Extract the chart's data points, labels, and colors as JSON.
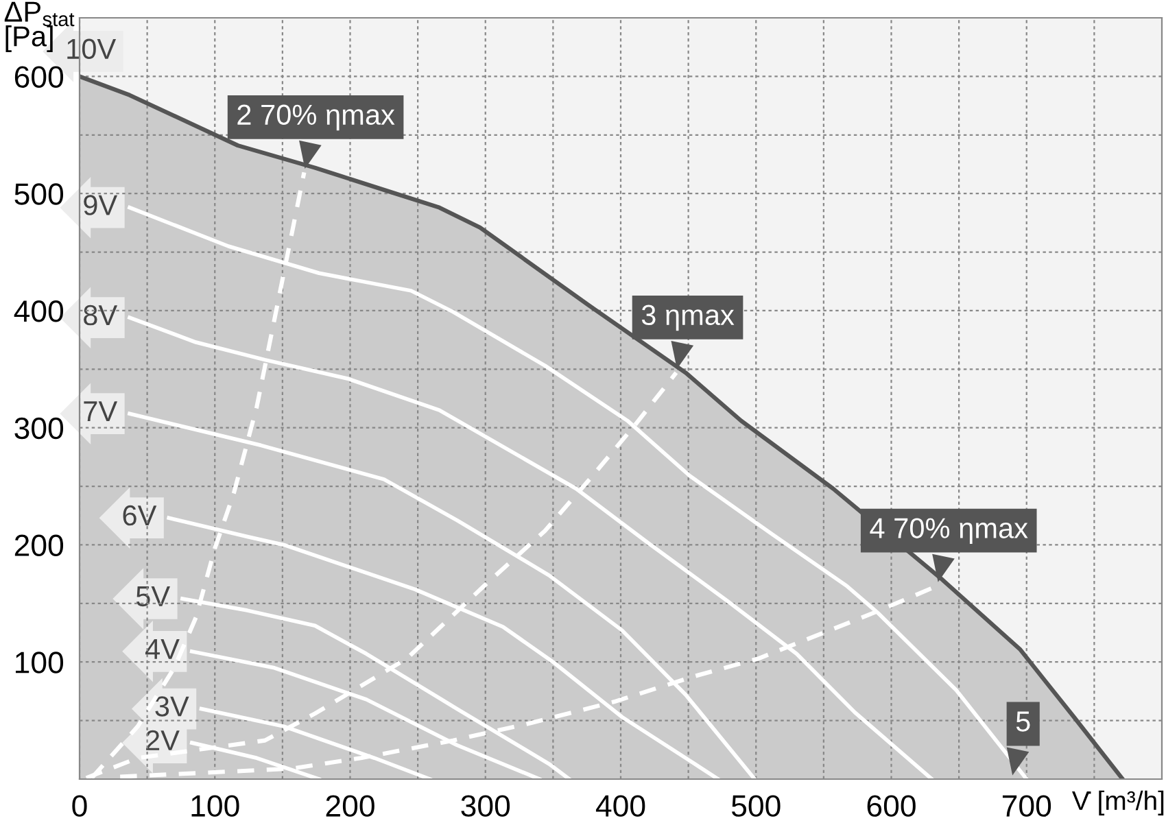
{
  "chart_data": {
    "type": "line",
    "xlabel": "V̇ [m³/h]",
    "ylabel": "ΔP$_{stat}$\n[Pa]",
    "xlim": [
      0,
      800
    ],
    "ylim": [
      0,
      650
    ],
    "xticks": [
      0,
      {
        "value": 50,
        "label": null
      },
      100,
      {
        "value": 150,
        "label": null
      },
      200,
      {
        "value": 250,
        "label": null
      },
      300,
      {
        "value": 350,
        "label": null
      },
      400,
      {
        "value": 450,
        "label": null
      },
      500,
      {
        "value": 550,
        "label": null
      },
      600,
      {
        "value": 650,
        "label": null
      },
      700,
      {
        "value": 750,
        "label": null
      }
    ],
    "yticks": [
      {
        "value": 50,
        "label": null
      },
      100,
      {
        "value": 150,
        "label": null
      },
      200,
      {
        "value": 250,
        "label": null
      },
      300,
      {
        "value": 350,
        "label": null
      },
      400,
      {
        "value": 450,
        "label": null
      },
      500,
      {
        "value": 550,
        "label": null
      },
      600
    ],
    "grid": true,
    "legend": false,
    "marker": "none",
    "series": [
      {
        "type": "area",
        "name": "10V",
        "color": "#555555",
        "x": [
          0,
          37,
          117,
          174,
          228,
          266,
          296,
          377,
          448,
          489,
          557,
          638,
          695,
          735,
          771
        ],
        "values": [
          600,
          584,
          541,
          522,
          502,
          488,
          471,
          404,
          347,
          306,
          248,
          170,
          111,
          53,
          0
        ]
      },
      {
        "name": "9V",
        "color": "#ffffff",
        "x": [
          37,
          110,
          177,
          245,
          276,
          344,
          405,
          451,
          512,
          567,
          590,
          648,
          700
        ],
        "values": [
          488,
          455,
          432,
          417,
          399,
          353,
          306,
          259,
          209,
          165,
          142,
          76,
          0
        ]
      },
      {
        "name": "8V",
        "color": "#ffffff",
        "x": [
          37,
          86,
          137,
          198,
          266,
          367,
          421,
          479,
          530,
          573,
          630
        ],
        "values": [
          394,
          373,
          358,
          342,
          315,
          248,
          201,
          152,
          107,
          57,
          0
        ]
      },
      {
        "name": "7V",
        "color": "#ffffff",
        "x": [
          37,
          134,
          225,
          279,
          347,
          401,
          448,
          499
        ],
        "values": [
          312,
          285,
          256,
          221,
          174,
          127,
          72,
          0
        ]
      },
      {
        "name": "6V",
        "color": "#ffffff",
        "x": [
          66,
          124,
          151,
          248,
          313,
          350,
          401,
          448,
          472
        ],
        "values": [
          223,
          207,
          200,
          162,
          130,
          100,
          53,
          18,
          0
        ]
      },
      {
        "name": "5V",
        "color": "#ffffff",
        "x": [
          76,
          124,
          174,
          212,
          279,
          347,
          362
        ],
        "values": [
          154,
          144,
          131,
          107,
          60,
          13,
          0
        ]
      },
      {
        "name": "4V",
        "color": "#ffffff",
        "x": [
          83,
          144,
          212,
          279,
          340
        ],
        "values": [
          109,
          95,
          68,
          29,
          0
        ]
      },
      {
        "name": "3V",
        "color": "#ffffff",
        "x": [
          90,
          151,
          218,
          259
        ],
        "values": [
          60,
          45,
          18,
          0
        ]
      },
      {
        "name": "2V",
        "color": "#ffffff",
        "x": [
          83,
          131,
          177
        ],
        "values": [
          31,
          18,
          0
        ]
      },
      {
        "color": "#ffffff",
        "line_style": "dashed",
        "x": [
          9,
          43,
          70,
          86,
          100,
          114,
          131,
          166
        ],
        "values": [
          1,
          45,
          95,
          138,
          197,
          244,
          318,
          518
        ]
      },
      {
        "color": "#ffffff",
        "line_style": "dashed",
        "x": [
          5,
          43,
          137,
          174,
          242,
          299,
          344,
          377,
          411,
          441
        ],
        "values": [
          1,
          18,
          33,
          56,
          103,
          165,
          212,
          256,
          303,
          347
        ]
      },
      {
        "color": "#ffffff",
        "line_style": "dashed",
        "x": [
          30,
          157,
          208,
          276,
          334,
          395,
          455,
          502,
          587,
          634
        ],
        "values": [
          2,
          9,
          18,
          33,
          48,
          66,
          88,
          103,
          142,
          165
        ]
      }
    ],
    "annotations": [
      {
        "text": "2 70% ηmax",
        "x": 166,
        "y": 518
      },
      {
        "text": "3 ηmax",
        "x": 441,
        "y": 347
      },
      {
        "text": "4 70% ηmax",
        "x": 634,
        "y": 165
      },
      {
        "text": "5",
        "x": 689,
        "y": 0
      }
    ]
  }
}
